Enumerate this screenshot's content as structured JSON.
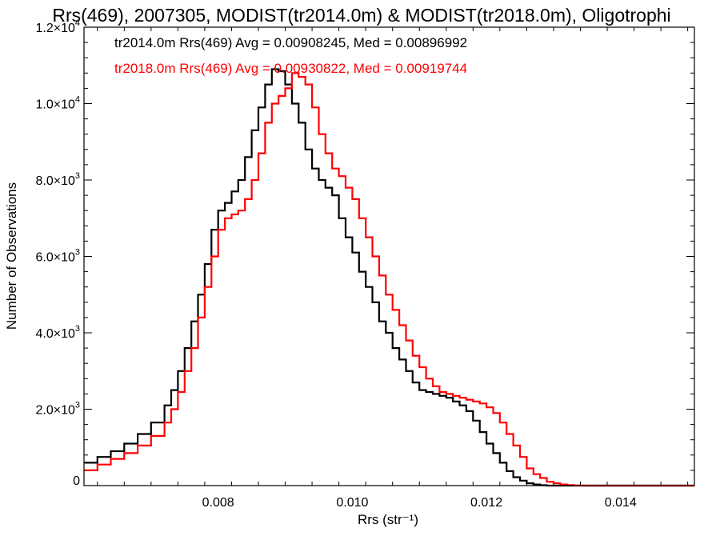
{
  "chart_data": {
    "type": "line",
    "title": "Rrs(469), 2007305, MODIST(tr2014.0m) & MODIST(tr2018.0m), Oligotrophi",
    "xlabel": "Rrs (str⁻¹)",
    "ylabel": "Number of Observations",
    "xlim": [
      0.006,
      0.0151
    ],
    "ylim": [
      0,
      12000
    ],
    "x_ticks": [
      {
        "value": 0.008,
        "label": "0.008"
      },
      {
        "value": 0.01,
        "label": "0.010"
      },
      {
        "value": 0.012,
        "label": "0.012"
      },
      {
        "value": 0.014,
        "label": "0.014"
      }
    ],
    "y_ticks": [
      {
        "value": 0,
        "label": "0"
      },
      {
        "value": 2000,
        "mantissa": "2.0×10",
        "exp": "3"
      },
      {
        "value": 4000,
        "mantissa": "4.0×10",
        "exp": "3"
      },
      {
        "value": 6000,
        "mantissa": "6.0×10",
        "exp": "3"
      },
      {
        "value": 8000,
        "mantissa": "8.0×10",
        "exp": "3"
      },
      {
        "value": 10000,
        "mantissa": "1.0×10",
        "exp": "4"
      },
      {
        "value": 12000,
        "mantissa": "1.2×10",
        "exp": "4"
      }
    ],
    "series": [
      {
        "annotation": "tr2014.0m Rrs(469) Avg = 0.00908245, Med = 0.00896992",
        "color": "#000000",
        "x": [
          0.006,
          0.0062,
          0.0064,
          0.0066,
          0.0068,
          0.007,
          0.0072,
          0.0073,
          0.0074,
          0.0075,
          0.0076,
          0.0077,
          0.0078,
          0.0079,
          0.008,
          0.0081,
          0.0082,
          0.0083,
          0.0084,
          0.0085,
          0.0086,
          0.0087,
          0.0088,
          0.0089,
          0.009,
          0.0091,
          0.0092,
          0.0093,
          0.0094,
          0.0095,
          0.0096,
          0.0097,
          0.0098,
          0.0099,
          0.01,
          0.0101,
          0.0102,
          0.0103,
          0.0104,
          0.0105,
          0.0106,
          0.0107,
          0.0108,
          0.0109,
          0.011,
          0.0111,
          0.0112,
          0.0113,
          0.0114,
          0.0115,
          0.0116,
          0.0117,
          0.0118,
          0.0119,
          0.012,
          0.0121,
          0.0122,
          0.0123,
          0.0124,
          0.0125,
          0.0126,
          0.0127,
          0.0128,
          0.0129,
          0.013,
          0.0131,
          0.0132,
          0.0133,
          0.0134,
          0.0136,
          0.0138,
          0.014,
          0.0145,
          0.0151
        ],
        "y": [
          600,
          750,
          900,
          1100,
          1350,
          1650,
          2100,
          2500,
          3000,
          3600,
          4300,
          5000,
          5800,
          6700,
          7200,
          7400,
          7700,
          8000,
          8600,
          9300,
          9900,
          10500,
          10900,
          10850,
          10500,
          10000,
          9500,
          8800,
          8300,
          8000,
          7800,
          7600,
          7000,
          6500,
          6100,
          5600,
          5200,
          4800,
          4300,
          4000,
          3600,
          3300,
          3000,
          2700,
          2500,
          2450,
          2400,
          2350,
          2300,
          2200,
          2100,
          1950,
          1700,
          1400,
          1100,
          850,
          600,
          380,
          220,
          130,
          60,
          30,
          10,
          0,
          0,
          0,
          0,
          0,
          0,
          0,
          0,
          0,
          0,
          0
        ]
      },
      {
        "annotation": "tr2018.0m Rrs(469) Avg = 0.00930822, Med = 0.00919744",
        "color": "#ff0000",
        "x": [
          0.006,
          0.0062,
          0.0064,
          0.0066,
          0.0068,
          0.007,
          0.0072,
          0.0073,
          0.0074,
          0.0075,
          0.0076,
          0.0077,
          0.0078,
          0.0079,
          0.008,
          0.0081,
          0.0082,
          0.0083,
          0.0084,
          0.0085,
          0.0086,
          0.0087,
          0.0088,
          0.0089,
          0.009,
          0.0091,
          0.0092,
          0.0093,
          0.0094,
          0.0095,
          0.0096,
          0.0097,
          0.0098,
          0.0099,
          0.01,
          0.0101,
          0.0102,
          0.0103,
          0.0104,
          0.0105,
          0.0106,
          0.0107,
          0.0108,
          0.0109,
          0.011,
          0.0111,
          0.0112,
          0.0113,
          0.0114,
          0.0115,
          0.0116,
          0.0117,
          0.0118,
          0.0119,
          0.012,
          0.0121,
          0.0122,
          0.0123,
          0.0124,
          0.0125,
          0.0126,
          0.0127,
          0.0128,
          0.0129,
          0.013,
          0.0131,
          0.0132,
          0.0133,
          0.0134,
          0.0136,
          0.0138,
          0.014,
          0.0145,
          0.0151
        ],
        "y": [
          400,
          550,
          700,
          850,
          1050,
          1300,
          1650,
          2000,
          2450,
          3000,
          3600,
          4400,
          5200,
          6000,
          6700,
          7000,
          7100,
          7200,
          7500,
          8000,
          8700,
          9500,
          10000,
          10200,
          10400,
          10800,
          10700,
          10500,
          9900,
          9200,
          8700,
          8300,
          8100,
          7800,
          7500,
          7000,
          6500,
          6000,
          5500,
          5000,
          4600,
          4200,
          3800,
          3400,
          3100,
          2800,
          2600,
          2450,
          2400,
          2350,
          2300,
          2250,
          2200,
          2150,
          2050,
          1900,
          1650,
          1350,
          1050,
          750,
          450,
          300,
          200,
          100,
          60,
          30,
          15,
          5,
          0,
          0,
          0,
          0,
          0,
          0
        ]
      }
    ]
  }
}
